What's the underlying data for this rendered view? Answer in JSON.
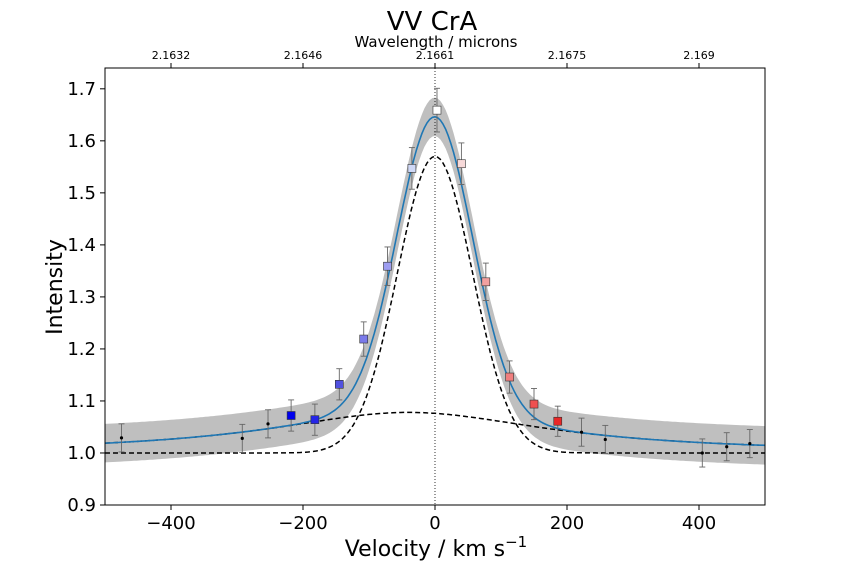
{
  "chart_data": {
    "type": "line",
    "title": "VV CrA",
    "xlabel": "Velocity / km s",
    "xlabel_sup": "−1",
    "ylabel": "Intensity",
    "top_xlabel": "Wavelength / microns",
    "xlim": [
      -500,
      500
    ],
    "ylim": [
      0.9,
      1.74
    ],
    "x_ticks": [
      -400,
      -200,
      0,
      200,
      400
    ],
    "x_tick_labels": [
      "−400",
      "−200",
      "0",
      "200",
      "400"
    ],
    "y_ticks": [
      0.9,
      1.0,
      1.1,
      1.2,
      1.3,
      1.4,
      1.5,
      1.6,
      1.7
    ],
    "y_tick_labels": [
      "0.9",
      "1.0",
      "1.1",
      "1.2",
      "1.3",
      "1.4",
      "1.5",
      "1.6",
      "1.7"
    ],
    "top_ticks_velocity": [
      -400,
      -200,
      0,
      200,
      400
    ],
    "top_tick_labels": [
      "2.1632",
      "2.1646",
      "2.1661",
      "2.1675",
      "2.169"
    ],
    "grid": false,
    "model": {
      "continuum": 1.0,
      "narrow": {
        "amplitude": 0.57,
        "center": 0,
        "sigma": 57
      },
      "broad": {
        "amplitude": 0.078,
        "center": -40,
        "gamma": 260
      },
      "band_halfwidth": 0.037,
      "colors": {
        "model": "#1f77b4",
        "band": "#bfbfbf",
        "components": "#000000",
        "zero_line": "#000000"
      }
    },
    "series": [
      {
        "marker": "circle",
        "color": "#000000",
        "points": [
          {
            "x": -475,
            "y": 1.029,
            "err": 0.027
          },
          {
            "x": -292,
            "y": 1.028,
            "err": 0.027
          },
          {
            "x": -253,
            "y": 1.056,
            "err": 0.027
          },
          {
            "x": 222,
            "y": 1.04,
            "err": 0.027
          },
          {
            "x": 258,
            "y": 1.026,
            "err": 0.027
          },
          {
            "x": 405,
            "y": 1.0,
            "err": 0.027
          },
          {
            "x": 442,
            "y": 1.012,
            "err": 0.027
          },
          {
            "x": 477,
            "y": 1.018,
            "err": 0.027
          }
        ]
      },
      {
        "marker": "square",
        "points": [
          {
            "x": -218,
            "y": 1.072,
            "err": 0.03,
            "color": "#0000ee"
          },
          {
            "x": -182,
            "y": 1.064,
            "err": 0.03,
            "color": "#2626e8"
          },
          {
            "x": -145,
            "y": 1.132,
            "err": 0.03,
            "color": "#5050e0"
          },
          {
            "x": -108,
            "y": 1.219,
            "err": 0.033,
            "color": "#7a7aea"
          },
          {
            "x": -72,
            "y": 1.359,
            "err": 0.037,
            "color": "#9e9ef2"
          },
          {
            "x": -35,
            "y": 1.547,
            "err": 0.04,
            "color": "#cfd8f6"
          },
          {
            "x": 3,
            "y": 1.659,
            "err": 0.042,
            "color": "#ffffff"
          },
          {
            "x": 40,
            "y": 1.556,
            "err": 0.04,
            "color": "#f7d9d9"
          },
          {
            "x": 77,
            "y": 1.329,
            "err": 0.036,
            "color": "#f2a0a0"
          },
          {
            "x": 113,
            "y": 1.146,
            "err": 0.031,
            "color": "#f07e7e"
          },
          {
            "x": 150,
            "y": 1.094,
            "err": 0.03,
            "color": "#ef4f4f"
          },
          {
            "x": 186,
            "y": 1.061,
            "err": 0.029,
            "color": "#e82727"
          }
        ]
      }
    ]
  }
}
